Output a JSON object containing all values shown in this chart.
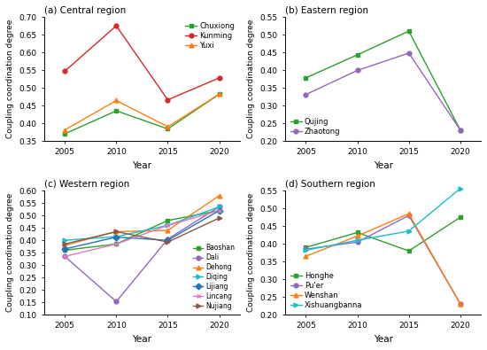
{
  "years": [
    2005,
    2010,
    2015,
    2020
  ],
  "panels": [
    {
      "key": "central",
      "title": "(a) Central region",
      "ylabel": "Coupling coordination degree",
      "xlabel": "Year",
      "ylim": [
        0.35,
        0.7
      ],
      "yticks": [
        0.35,
        0.4,
        0.45,
        0.5,
        0.55,
        0.6,
        0.65,
        0.7
      ],
      "legend_loc": "upper right",
      "legend_bbox": null,
      "series": [
        {
          "name": "Chuxiong",
          "values": [
            0.37,
            0.435,
            0.384,
            0.482
          ],
          "color": "#2ca02c",
          "marker": "s"
        },
        {
          "name": "Kunming",
          "values": [
            0.547,
            0.675,
            0.466,
            0.528
          ],
          "color": "#d62728",
          "marker": "o"
        },
        {
          "name": "Yuxi",
          "values": [
            0.381,
            0.464,
            0.39,
            0.482
          ],
          "color": "#ff7f0e",
          "marker": "^"
        }
      ]
    },
    {
      "key": "eastern",
      "title": "(b) Eastern region",
      "ylabel": "Coupling coordination degree",
      "xlabel": "Year",
      "ylim": [
        0.2,
        0.55
      ],
      "yticks": [
        0.2,
        0.25,
        0.3,
        0.35,
        0.4,
        0.45,
        0.5,
        0.55
      ],
      "legend_loc": "lower left",
      "legend_bbox": null,
      "series": [
        {
          "name": "Qujing",
          "values": [
            0.378,
            0.443,
            0.51,
            0.231
          ],
          "color": "#2ca02c",
          "marker": "s"
        },
        {
          "name": "Zhaotong",
          "values": [
            0.331,
            0.399,
            0.448,
            0.231
          ],
          "color": "#9467bd",
          "marker": "o"
        }
      ]
    },
    {
      "key": "western",
      "title": "(c) Western region",
      "ylabel": "Coupling coordination degree",
      "xlabel": "Year",
      "ylim": [
        0.1,
        0.6
      ],
      "yticks": [
        0.1,
        0.15,
        0.2,
        0.25,
        0.3,
        0.35,
        0.4,
        0.45,
        0.5,
        0.55,
        0.6
      ],
      "legend_loc": "lower right",
      "legend_bbox": null,
      "series": [
        {
          "name": "Baoshan",
          "values": [
            0.36,
            0.385,
            0.48,
            0.52
          ],
          "color": "#2ca02c",
          "marker": "s"
        },
        {
          "name": "Dali",
          "values": [
            0.335,
            0.153,
            0.405,
            0.535
          ],
          "color": "#9467bd",
          "marker": "o"
        },
        {
          "name": "Dehong",
          "values": [
            0.38,
            0.435,
            0.44,
            0.58
          ],
          "color": "#ff7f0e",
          "marker": "^"
        },
        {
          "name": "Diqing",
          "values": [
            0.4,
            0.415,
            0.46,
            0.535
          ],
          "color": "#17becf",
          "marker": ">"
        },
        {
          "name": "Lijiang",
          "values": [
            0.365,
            0.413,
            0.4,
            0.52
          ],
          "color": "#1f77b4",
          "marker": "D"
        },
        {
          "name": "Lincang",
          "values": [
            0.335,
            0.385,
            0.46,
            0.52
          ],
          "color": "#e377c2",
          "marker": "x"
        },
        {
          "name": "Nujiang",
          "values": [
            0.385,
            0.435,
            0.393,
            0.49
          ],
          "color": "#8c564b",
          "marker": ">"
        }
      ]
    },
    {
      "key": "southern",
      "title": "(d) Southern region",
      "ylabel": "Coupling coordination degree",
      "xlabel": "Year",
      "ylim": [
        0.2,
        0.55
      ],
      "yticks": [
        0.2,
        0.25,
        0.3,
        0.35,
        0.4,
        0.45,
        0.5,
        0.55
      ],
      "legend_loc": "lower left",
      "legend_bbox": null,
      "series": [
        {
          "name": "Honghe",
          "values": [
            0.39,
            0.432,
            0.38,
            0.475
          ],
          "color": "#2ca02c",
          "marker": "s"
        },
        {
          "name": "Pu'er",
          "values": [
            0.385,
            0.405,
            0.48,
            0.231
          ],
          "color": "#9467bd",
          "marker": "o"
        },
        {
          "name": "Wenshan",
          "values": [
            0.365,
            0.422,
            0.485,
            0.231
          ],
          "color": "#ff7f0e",
          "marker": "^"
        },
        {
          "name": "Xishuangbanna",
          "values": [
            0.382,
            0.41,
            0.436,
            0.556
          ],
          "color": "#17becf",
          "marker": ">"
        }
      ]
    }
  ]
}
